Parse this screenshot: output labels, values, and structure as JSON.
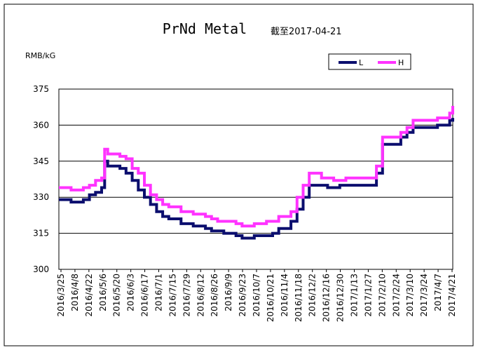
{
  "chart_data": {
    "type": "line",
    "title": "PrNd Metal",
    "subtitle": "截至2017-04-21",
    "ylabel": "RMB/kG",
    "xlabel": "",
    "ylim": [
      300,
      375
    ],
    "yticks": [
      "375",
      "360",
      "345",
      "330",
      "315",
      "300"
    ],
    "grid": true,
    "legend": "top-right",
    "xlabels": [
      "2016/3/25",
      "2016/4/8",
      "2016/4/22",
      "2016/5/6",
      "2016/5/20",
      "2016/6/3",
      "2016/6/17",
      "2016/7/1",
      "2016/7/15",
      "2016/7/29",
      "2016/8/12",
      "2016/8/26",
      "2016/9/9",
      "2016/9/23",
      "2016/10/7",
      "2016/10/21",
      "2016/11/4",
      "2016/11/18",
      "2016/12/2",
      "2016/12/16",
      "2016/12/30",
      "2017/1/13",
      "2017/1/27",
      "2017/2/10",
      "2017/2/24",
      "2017/3/10",
      "2017/3/24",
      "2017/4/7",
      "2017/4/21"
    ],
    "series": [
      {
        "name": "L",
        "color": "#0b0e6e",
        "points": [
          [
            0,
            329
          ],
          [
            1,
            329
          ],
          [
            2,
            328
          ],
          [
            3,
            328
          ],
          [
            4,
            329
          ],
          [
            5,
            331
          ],
          [
            6,
            332
          ],
          [
            7,
            334
          ],
          [
            7.5,
            345
          ],
          [
            8,
            343
          ],
          [
            9,
            343
          ],
          [
            10,
            342
          ],
          [
            11,
            340
          ],
          [
            12,
            337
          ],
          [
            13,
            333
          ],
          [
            14,
            330
          ],
          [
            15,
            327
          ],
          [
            16,
            324
          ],
          [
            17,
            322
          ],
          [
            18,
            321
          ],
          [
            19,
            321
          ],
          [
            20,
            319
          ],
          [
            21,
            319
          ],
          [
            22,
            318
          ],
          [
            23,
            318
          ],
          [
            24,
            317
          ],
          [
            25,
            316
          ],
          [
            26,
            316
          ],
          [
            27,
            315
          ],
          [
            28,
            315
          ],
          [
            29,
            314
          ],
          [
            30,
            313
          ],
          [
            31,
            313
          ],
          [
            32,
            314
          ],
          [
            33,
            314
          ],
          [
            34,
            314
          ],
          [
            35,
            315
          ],
          [
            36,
            317
          ],
          [
            37,
            317
          ],
          [
            38,
            320
          ],
          [
            39,
            325
          ],
          [
            40,
            330
          ],
          [
            41,
            335
          ],
          [
            42,
            335
          ],
          [
            43,
            335
          ],
          [
            44,
            334
          ],
          [
            45,
            334
          ],
          [
            46,
            335
          ],
          [
            47,
            335
          ],
          [
            48,
            335
          ],
          [
            49,
            335
          ],
          [
            50,
            335
          ],
          [
            51,
            335
          ],
          [
            52,
            340
          ],
          [
            53,
            352
          ],
          [
            54,
            352
          ],
          [
            55,
            352
          ],
          [
            56,
            355
          ],
          [
            57,
            357
          ],
          [
            58,
            359
          ],
          [
            59,
            359
          ],
          [
            60,
            359
          ],
          [
            61,
            359
          ],
          [
            62,
            360
          ],
          [
            63,
            360
          ],
          [
            64,
            362
          ],
          [
            64.5,
            363
          ]
        ]
      },
      {
        "name": "H",
        "color": "#ff33ff",
        "points": [
          [
            0,
            334
          ],
          [
            1,
            334
          ],
          [
            2,
            333
          ],
          [
            3,
            333
          ],
          [
            4,
            334
          ],
          [
            5,
            335
          ],
          [
            6,
            337
          ],
          [
            7,
            338
          ],
          [
            7.5,
            350
          ],
          [
            8,
            348
          ],
          [
            9,
            348
          ],
          [
            10,
            347
          ],
          [
            11,
            346
          ],
          [
            12,
            342
          ],
          [
            13,
            340
          ],
          [
            14,
            335
          ],
          [
            15,
            331
          ],
          [
            16,
            329
          ],
          [
            17,
            327
          ],
          [
            18,
            326
          ],
          [
            19,
            326
          ],
          [
            20,
            324
          ],
          [
            21,
            324
          ],
          [
            22,
            323
          ],
          [
            23,
            323
          ],
          [
            24,
            322
          ],
          [
            25,
            321
          ],
          [
            26,
            320
          ],
          [
            27,
            320
          ],
          [
            28,
            320
          ],
          [
            29,
            319
          ],
          [
            30,
            318
          ],
          [
            31,
            318
          ],
          [
            32,
            319
          ],
          [
            33,
            319
          ],
          [
            34,
            320
          ],
          [
            35,
            320
          ],
          [
            36,
            322
          ],
          [
            37,
            322
          ],
          [
            38,
            324
          ],
          [
            39,
            330
          ],
          [
            40,
            335
          ],
          [
            41,
            340
          ],
          [
            42,
            340
          ],
          [
            43,
            338
          ],
          [
            44,
            338
          ],
          [
            45,
            337
          ],
          [
            46,
            337
          ],
          [
            47,
            338
          ],
          [
            48,
            338
          ],
          [
            49,
            338
          ],
          [
            50,
            338
          ],
          [
            51,
            338
          ],
          [
            52,
            343
          ],
          [
            53,
            355
          ],
          [
            54,
            355
          ],
          [
            55,
            355
          ],
          [
            56,
            357
          ],
          [
            57,
            359
          ],
          [
            58,
            362
          ],
          [
            59,
            362
          ],
          [
            60,
            362
          ],
          [
            61,
            362
          ],
          [
            62,
            363
          ],
          [
            63,
            363
          ],
          [
            64,
            365
          ],
          [
            64.5,
            368
          ]
        ]
      }
    ]
  }
}
